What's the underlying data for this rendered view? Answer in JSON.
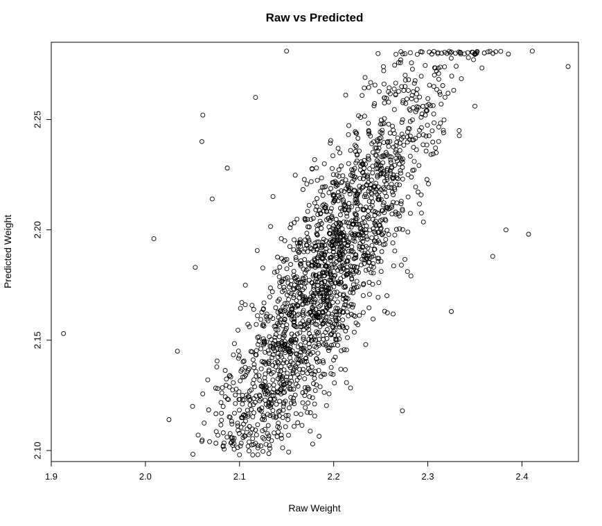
{
  "chart_data": {
    "type": "scatter",
    "title": "Raw vs Predicted",
    "xlabel": "Raw Weight",
    "ylabel": "Predicted Weight",
    "xlim": [
      1.9,
      2.46
    ],
    "ylim": [
      2.095,
      2.285
    ],
    "x_ticks": [
      1.9,
      2.0,
      2.1,
      2.2,
      2.3,
      2.4
    ],
    "x_tick_labels": [
      "1.9",
      "2.0",
      "2.1",
      "2.2",
      "2.3",
      "2.4"
    ],
    "y_ticks": [
      2.1,
      2.15,
      2.2,
      2.25
    ],
    "y_tick_labels": [
      "2.10",
      "2.15",
      "2.20",
      "2.25"
    ],
    "grid": false,
    "marker": "open-circle",
    "point_color": "#000000",
    "outliers": [
      [
        1.913,
        2.153
      ],
      [
        2.009,
        2.196
      ],
      [
        2.15,
        2.281
      ],
      [
        2.449,
        2.274
      ],
      [
        2.411,
        2.281
      ],
      [
        2.407,
        2.198
      ],
      [
        2.117,
        2.26
      ],
      [
        2.061,
        2.252
      ],
      [
        2.06,
        2.24
      ],
      [
        2.025,
        2.114
      ],
      [
        2.034,
        2.145
      ],
      [
        2.114,
        2.098
      ],
      [
        2.383,
        2.2
      ],
      [
        2.369,
        2.188
      ],
      [
        2.325,
        2.163
      ],
      [
        2.273,
        2.118
      ],
      [
        2.056,
        2.107
      ],
      [
        2.053,
        2.183
      ],
      [
        2.071,
        2.214
      ],
      [
        2.087,
        2.228
      ]
    ],
    "cluster": {
      "count": 2100,
      "x_center": 2.19,
      "x_sd": 0.062,
      "y_intercept": 2.177,
      "slope": 0.72,
      "y_resid_sd": 0.024,
      "y_max": 2.281,
      "y_min": 2.098
    }
  }
}
